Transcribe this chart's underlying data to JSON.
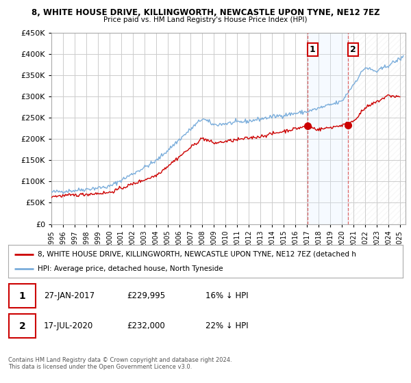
{
  "title": "8, WHITE HOUSE DRIVE, KILLINGWORTH, NEWCASTLE UPON TYNE, NE12 7EZ",
  "subtitle": "Price paid vs. HM Land Registry's House Price Index (HPI)",
  "legend_line1": "8, WHITE HOUSE DRIVE, KILLINGWORTH, NEWCASTLE UPON TYNE, NE12 7EZ (detached h",
  "legend_line2": "HPI: Average price, detached house, North Tyneside",
  "annotation1_label": "1",
  "annotation1_date": "27-JAN-2017",
  "annotation1_price": "£229,995",
  "annotation1_hpi": "16% ↓ HPI",
  "annotation2_label": "2",
  "annotation2_date": "17-JUL-2020",
  "annotation2_price": "£232,000",
  "annotation2_hpi": "22% ↓ HPI",
  "footer": "Contains HM Land Registry data © Crown copyright and database right 2024.\nThis data is licensed under the Open Government Licence v3.0.",
  "line_color_red": "#cc0000",
  "line_color_blue": "#7aaddb",
  "annotation_color": "#cc0000",
  "vline_color": "#dd6666",
  "background_color": "#ffffff",
  "plot_bg_color": "#ffffff",
  "shade_color": "#ddeeff",
  "grid_color": "#cccccc",
  "ylim": [
    0,
    450000
  ],
  "yticks": [
    0,
    50000,
    100000,
    150000,
    200000,
    250000,
    300000,
    350000,
    400000,
    450000
  ],
  "xlim_start": 1995.0,
  "xlim_end": 2025.5,
  "xtick_years": [
    1995,
    1996,
    1997,
    1998,
    1999,
    2000,
    2001,
    2002,
    2003,
    2004,
    2005,
    2006,
    2007,
    2008,
    2009,
    2010,
    2011,
    2012,
    2013,
    2014,
    2015,
    2016,
    2017,
    2018,
    2019,
    2020,
    2021,
    2022,
    2023,
    2024,
    2025
  ],
  "sale1_x": 2017.07,
  "sale1_y": 229995,
  "sale2_x": 2020.54,
  "sale2_y": 232000,
  "vline1_x": 2017.07,
  "vline2_x": 2020.54,
  "hatch_right": true
}
